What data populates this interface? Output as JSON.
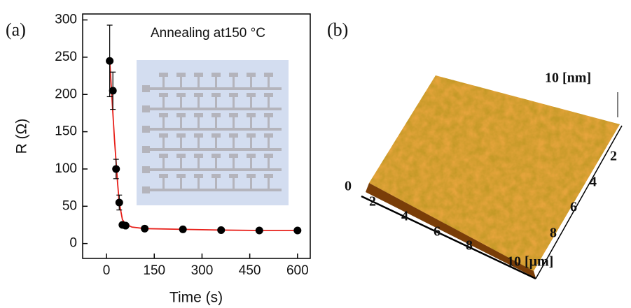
{
  "panel_a_label": "(a)",
  "panel_b_label": "(b)",
  "chart_data": {
    "type": "scatter",
    "annotation": "Annealing at150 °C",
    "x_label": "Time (s)",
    "y_label": "R (Ω)",
    "xlim": [
      -75,
      640
    ],
    "ylim": [
      -20,
      308
    ],
    "xticks": [
      0,
      150,
      300,
      450,
      600
    ],
    "yticks": [
      0,
      50,
      100,
      150,
      200,
      250,
      300
    ],
    "series": [
      {
        "x": [
          10,
          20,
          30,
          40,
          50,
          60,
          120,
          240,
          360,
          480,
          600
        ],
        "values": [
          245,
          205,
          100,
          55,
          25,
          24,
          20,
          19,
          18,
          17.5,
          17.5
        ],
        "errors": [
          48,
          25,
          13,
          10,
          3,
          1,
          1,
          1,
          1,
          1,
          1
        ],
        "color": "#000000"
      },
      {
        "type": "line",
        "x": [
          10,
          15,
          20,
          25,
          30,
          35,
          40,
          50,
          60,
          80,
          120,
          240,
          360,
          480,
          600
        ],
        "values": [
          245,
          210,
          175,
          140,
          110,
          80,
          55,
          32,
          26,
          22,
          20,
          19,
          18,
          17.5,
          17.5
        ],
        "color": "#e8201a"
      }
    ]
  },
  "afm": {
    "z_label": "10 [nm]",
    "origin": "0",
    "x_labels": [
      "2",
      "4",
      "6",
      "8",
      "10 [μm]"
    ],
    "y_labels": [
      "2",
      "4",
      "6",
      "8"
    ]
  }
}
